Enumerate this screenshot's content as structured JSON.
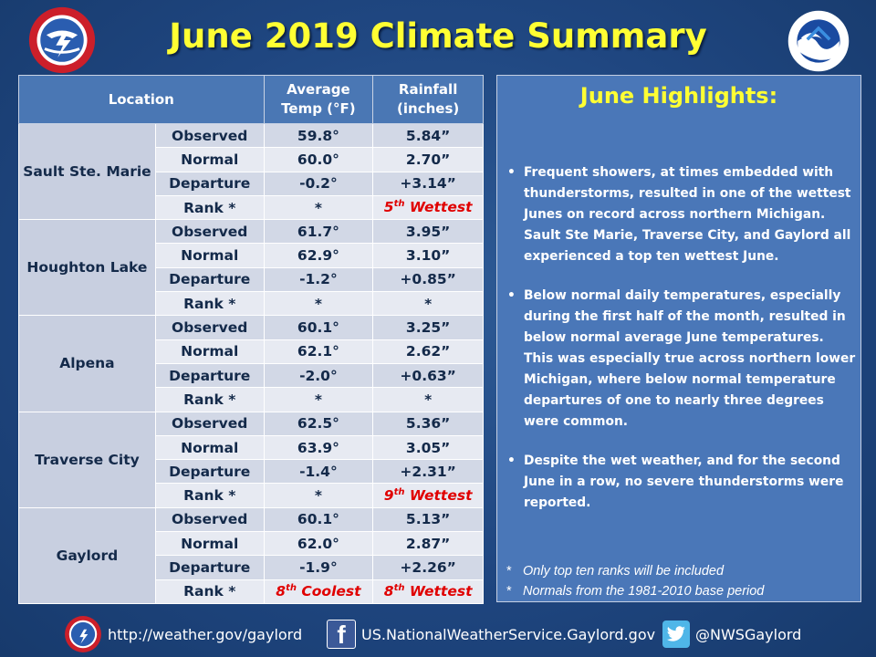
{
  "title": "June 2019 Climate Summary",
  "table": {
    "headers": {
      "location": "Location",
      "temp_line1": "Average",
      "temp_line2": "Temp (°F)",
      "rain_line1": "Rainfall",
      "rain_line2": "(inches)"
    },
    "locations": [
      {
        "name": "Sault Ste. Marie",
        "rows": [
          {
            "label": "Observed",
            "temp": "59.8°",
            "rain": "5.84”"
          },
          {
            "label": "Normal",
            "temp": "60.0°",
            "rain": "2.70”"
          },
          {
            "label": "Departure",
            "temp": "-0.2°",
            "rain": "+3.14”"
          },
          {
            "label": "Rank *",
            "temp": "*",
            "rain_rank": "5",
            "rain_sup": "th",
            "rain_desc": "Wettest"
          }
        ]
      },
      {
        "name": "Houghton Lake",
        "rows": [
          {
            "label": "Observed",
            "temp": "61.7°",
            "rain": "3.95”"
          },
          {
            "label": "Normal",
            "temp": "62.9°",
            "rain": "3.10”"
          },
          {
            "label": "Departure",
            "temp": "-1.2°",
            "rain": "+0.85”"
          },
          {
            "label": "Rank *",
            "temp": "*",
            "rain": "*"
          }
        ]
      },
      {
        "name": "Alpena",
        "rows": [
          {
            "label": "Observed",
            "temp": "60.1°",
            "rain": "3.25”"
          },
          {
            "label": "Normal",
            "temp": "62.1°",
            "rain": "2.62”"
          },
          {
            "label": "Departure",
            "temp": "-2.0°",
            "rain": "+0.63”"
          },
          {
            "label": "Rank *",
            "temp": "*",
            "rain": "*"
          }
        ]
      },
      {
        "name": "Traverse City",
        "rows": [
          {
            "label": "Observed",
            "temp": "62.5°",
            "rain": "5.36”"
          },
          {
            "label": "Normal",
            "temp": "63.9°",
            "rain": "3.05”"
          },
          {
            "label": "Departure",
            "temp": "-1.4°",
            "rain": "+2.31”"
          },
          {
            "label": "Rank *",
            "temp": "*",
            "rain_rank": "9",
            "rain_sup": "th",
            "rain_desc": "Wettest"
          }
        ]
      },
      {
        "name": "Gaylord",
        "rows": [
          {
            "label": "Observed",
            "temp": "60.1°",
            "rain": "5.13”"
          },
          {
            "label": "Normal",
            "temp": "62.0°",
            "rain": "2.87”"
          },
          {
            "label": "Departure",
            "temp": "-1.9°",
            "rain": "+2.26”"
          },
          {
            "label": "Rank *",
            "temp_rank": "8",
            "temp_sup": "th",
            "temp_desc": "Coolest",
            "rain_rank": "8",
            "rain_sup": "th",
            "rain_desc": "Wettest"
          }
        ]
      }
    ]
  },
  "highlights": {
    "title": "June Highlights:",
    "bullets": [
      "Frequent showers, at times embedded with thunderstorms, resulted in one of the wettest Junes on record across northern Michigan. Sault Ste Marie, Traverse City, and Gaylord all experienced a top ten wettest June.",
      "Below normal daily temperatures, especially during the first half of the month, resulted in below normal average June temperatures. This was especially true across northern lower Michigan, where below normal temperature departures of one to nearly three degrees were common.",
      "Despite the wet weather, and for the second June in a row, no severe thunderstorms were reported."
    ],
    "notes": [
      "Only top ten ranks will be included",
      "Normals from the 1981-2010 base period"
    ]
  },
  "footer": {
    "website": "http://weather.gov/gaylord",
    "facebook": "US.NationalWeatherService.Gaylord.gov",
    "twitter": "@NWSGaylord"
  },
  "colors": {
    "title": "#ffff33",
    "rank_highlight": "#e00000",
    "panel": "#4a77b8",
    "header": "#4a77b4"
  },
  "icons": [
    "nws-logo-icon",
    "noaa-logo-icon",
    "facebook-icon",
    "twitter-icon"
  ]
}
